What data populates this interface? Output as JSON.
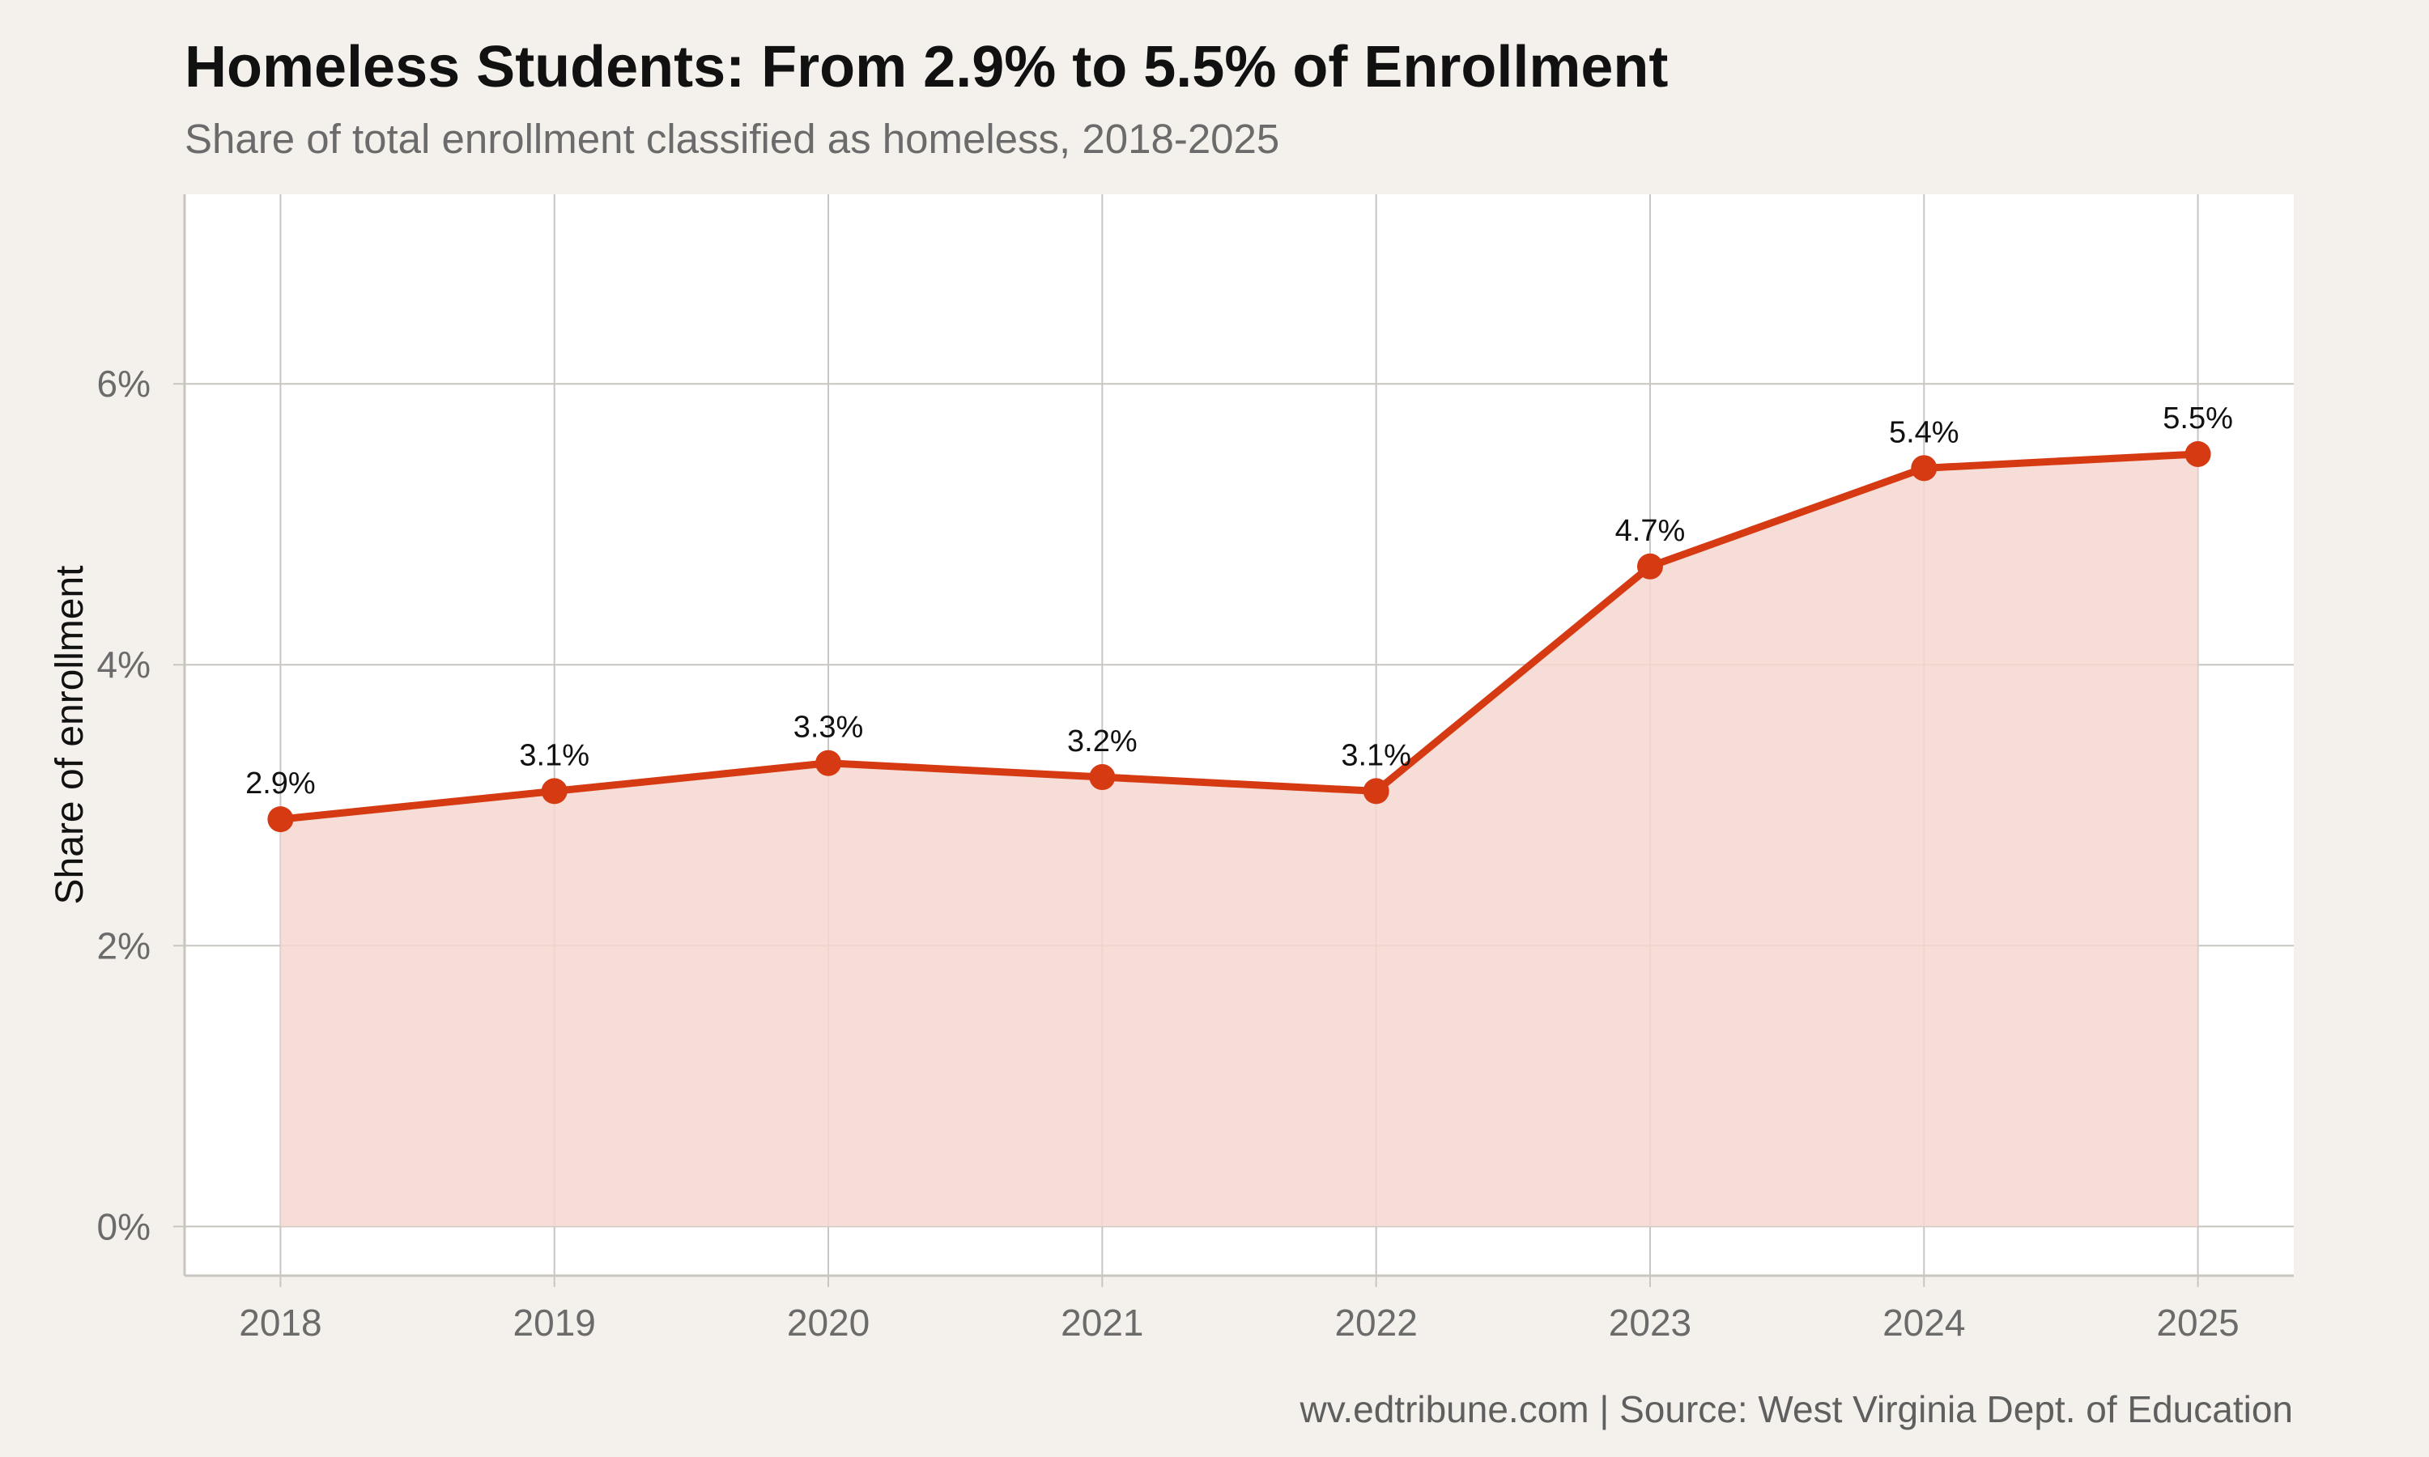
{
  "title": "Homeless Students: From 2.9% to 5.5% of Enrollment",
  "subtitle": "Share of total enrollment classified as homeless, 2018-2025",
  "caption": "wv.edtribune.com | Source: West Virginia Dept. of Education",
  "colors": {
    "line": "#d63a12",
    "area": "#f5d7d0",
    "grid": "#c9c6c0",
    "panel": "#ffffff",
    "background": "#f4f1ec"
  },
  "chart_data": {
    "type": "area",
    "x": [
      2018,
      2019,
      2020,
      2021,
      2022,
      2023,
      2024,
      2025
    ],
    "x_tick_labels": [
      "2018",
      "2019",
      "2020",
      "2021",
      "2022",
      "2023",
      "2024",
      "2025"
    ],
    "series": [
      {
        "values": [
          2.9,
          3.1,
          3.3,
          3.2,
          3.1,
          4.7,
          5.4,
          5.5
        ],
        "labels": [
          "2.9%",
          "3.1%",
          "3.3%",
          "3.2%",
          "3.1%",
          "4.7%",
          "5.4%",
          "5.5%"
        ]
      }
    ],
    "ylabel": "Share of enrollment",
    "xlabel": "",
    "y_ticks": [
      0,
      2,
      4,
      6
    ],
    "y_tick_labels": [
      "0%",
      "2%",
      "4%",
      "6%"
    ],
    "ylim": [
      -0.35,
      7.35
    ],
    "xlim": [
      2017.65,
      2025.35
    ],
    "grid": true
  }
}
